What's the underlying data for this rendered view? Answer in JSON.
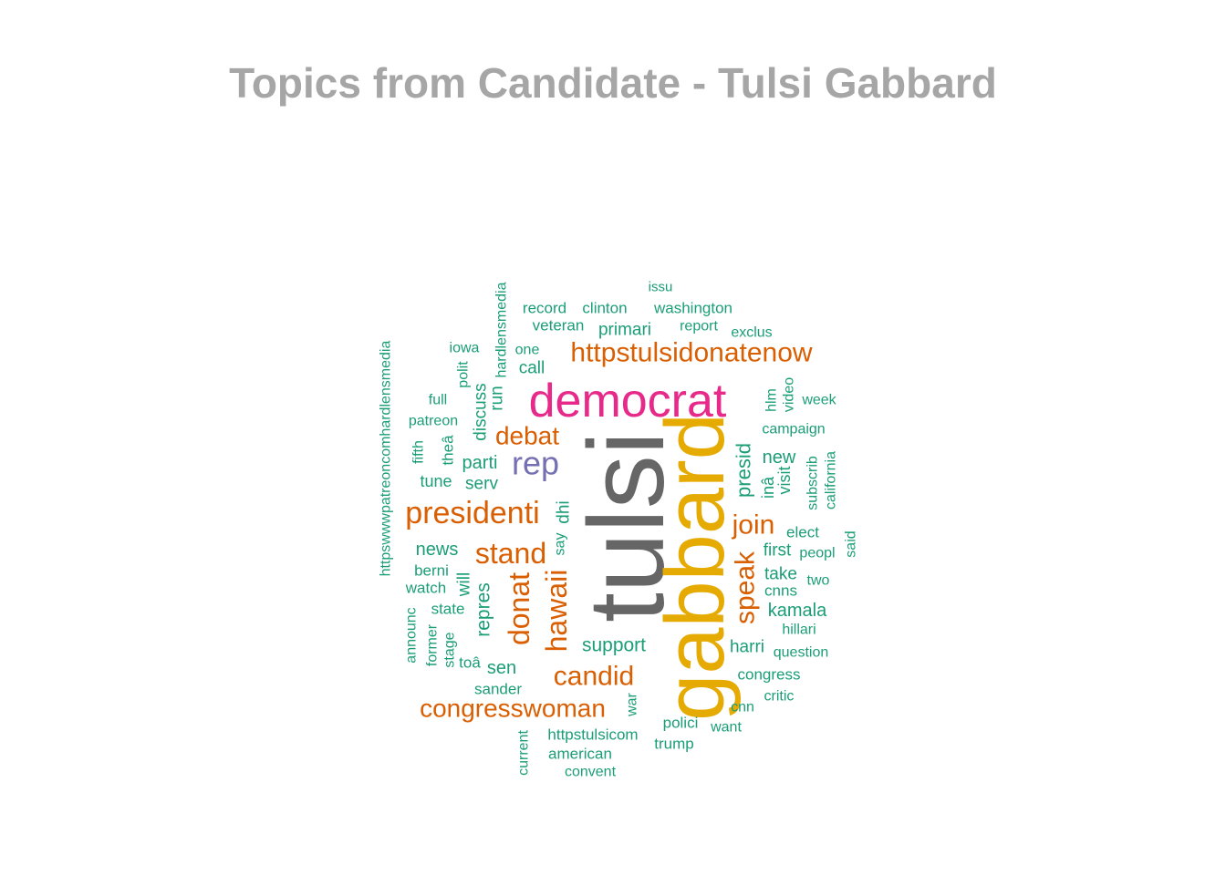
{
  "title": "Topics from Candidate - Tulsi Gabbard",
  "chart_data": {
    "type": "wordcloud",
    "title": "Topics from Candidate - Tulsi Gabbard",
    "colors": {
      "top": "#666666",
      "second": "#e6ab02",
      "third": "#e7298a",
      "fourth": "#7570b3",
      "fifth": "#d95f02",
      "rest": "#1b9e77",
      "title": "#a6a6a6"
    },
    "words": [
      {
        "text": "tulsi",
        "weight": 100,
        "color": "#666666",
        "rotated": true
      },
      {
        "text": "gabbard",
        "weight": 78,
        "color": "#e6ab02",
        "rotated": true
      },
      {
        "text": "democrat",
        "weight": 44,
        "color": "#e7298a",
        "rotated": false
      },
      {
        "text": "rep",
        "weight": 30,
        "color": "#7570b3",
        "rotated": false
      },
      {
        "text": "presidenti",
        "weight": 27,
        "color": "#d95f02",
        "rotated": false
      },
      {
        "text": "httpstulsidonatenow",
        "weight": 25,
        "color": "#d95f02",
        "rotated": false
      },
      {
        "text": "stand",
        "weight": 26,
        "color": "#d95f02",
        "rotated": false
      },
      {
        "text": "hawaii",
        "weight": 27,
        "color": "#d95f02",
        "rotated": true
      },
      {
        "text": "donat",
        "weight": 26,
        "color": "#d95f02",
        "rotated": true
      },
      {
        "text": "candid",
        "weight": 26,
        "color": "#d95f02",
        "rotated": false
      },
      {
        "text": "congresswoman",
        "weight": 24,
        "color": "#d95f02",
        "rotated": false
      },
      {
        "text": "speak",
        "weight": 26,
        "color": "#d95f02",
        "rotated": true
      },
      {
        "text": "join",
        "weight": 25,
        "color": "#d95f02",
        "rotated": false
      },
      {
        "text": "debat",
        "weight": 24,
        "color": "#d95f02",
        "rotated": false
      },
      {
        "text": "presid",
        "weight": 19,
        "color": "#1b9e77",
        "rotated": true
      },
      {
        "text": "support",
        "weight": 18,
        "color": "#1b9e77",
        "rotated": false
      },
      {
        "text": "repres",
        "weight": 18,
        "color": "#1b9e77",
        "rotated": true
      },
      {
        "text": "news",
        "weight": 17,
        "color": "#1b9e77",
        "rotated": false
      },
      {
        "text": "parti",
        "weight": 17,
        "color": "#1b9e77",
        "rotated": false
      },
      {
        "text": "serv",
        "weight": 16,
        "color": "#1b9e77",
        "rotated": false
      },
      {
        "text": "tune",
        "weight": 15,
        "color": "#1b9e77",
        "rotated": false
      },
      {
        "text": "kamala",
        "weight": 17,
        "color": "#1b9e77",
        "rotated": false
      },
      {
        "text": "harri",
        "weight": 16,
        "color": "#1b9e77",
        "rotated": false
      },
      {
        "text": "sen",
        "weight": 17,
        "color": "#1b9e77",
        "rotated": false
      },
      {
        "text": "call",
        "weight": 16,
        "color": "#1b9e77",
        "rotated": false
      },
      {
        "text": "run",
        "weight": 16,
        "color": "#1b9e77",
        "rotated": true
      },
      {
        "text": "discuss",
        "weight": 16,
        "color": "#1b9e77",
        "rotated": true
      },
      {
        "text": "primari",
        "weight": 16,
        "color": "#1b9e77",
        "rotated": false
      },
      {
        "text": "will",
        "weight": 16,
        "color": "#1b9e77",
        "rotated": true
      },
      {
        "text": "dhi",
        "weight": 16,
        "color": "#1b9e77",
        "rotated": true
      },
      {
        "text": "new",
        "weight": 17,
        "color": "#1b9e77",
        "rotated": false
      },
      {
        "text": "first",
        "weight": 16,
        "color": "#1b9e77",
        "rotated": false
      },
      {
        "text": "take",
        "weight": 16,
        "color": "#1b9e77",
        "rotated": false
      },
      {
        "text": "visit",
        "weight": 15,
        "color": "#1b9e77",
        "rotated": true
      },
      {
        "text": "inâ",
        "weight": 15,
        "color": "#1b9e77",
        "rotated": true
      },
      {
        "text": "record",
        "weight": 15,
        "color": "#1b9e77",
        "rotated": false
      },
      {
        "text": "clinton",
        "weight": 15,
        "color": "#1b9e77",
        "rotated": false
      },
      {
        "text": "washington",
        "weight": 15,
        "color": "#1b9e77",
        "rotated": false
      },
      {
        "text": "veteran",
        "weight": 15,
        "color": "#1b9e77",
        "rotated": false
      },
      {
        "text": "report",
        "weight": 14,
        "color": "#1b9e77",
        "rotated": false
      },
      {
        "text": "exclus",
        "weight": 14,
        "color": "#1b9e77",
        "rotated": false
      },
      {
        "text": "issu",
        "weight": 13,
        "color": "#1b9e77",
        "rotated": false
      },
      {
        "text": "hardlensmedia",
        "weight": 14,
        "color": "#1b9e77",
        "rotated": true
      },
      {
        "text": "httpswwwpatreoncomhardlensmedia",
        "weight": 14,
        "color": "#1b9e77",
        "rotated": true
      },
      {
        "text": "iowa",
        "weight": 14,
        "color": "#1b9e77",
        "rotated": false
      },
      {
        "text": "polit",
        "weight": 14,
        "color": "#1b9e77",
        "rotated": true
      },
      {
        "text": "one",
        "weight": 14,
        "color": "#1b9e77",
        "rotated": false
      },
      {
        "text": "full",
        "weight": 14,
        "color": "#1b9e77",
        "rotated": false
      },
      {
        "text": "patreon",
        "weight": 14,
        "color": "#1b9e77",
        "rotated": false
      },
      {
        "text": "fifth",
        "weight": 14,
        "color": "#1b9e77",
        "rotated": true
      },
      {
        "text": "theâ",
        "weight": 15,
        "color": "#1b9e77",
        "rotated": true
      },
      {
        "text": "hlm",
        "weight": 14,
        "color": "#1b9e77",
        "rotated": true
      },
      {
        "text": "video",
        "weight": 14,
        "color": "#1b9e77",
        "rotated": true
      },
      {
        "text": "week",
        "weight": 14,
        "color": "#1b9e77",
        "rotated": false
      },
      {
        "text": "campaign",
        "weight": 14,
        "color": "#1b9e77",
        "rotated": false
      },
      {
        "text": "subscrib",
        "weight": 14,
        "color": "#1b9e77",
        "rotated": true
      },
      {
        "text": "california",
        "weight": 14,
        "color": "#1b9e77",
        "rotated": true
      },
      {
        "text": "elect",
        "weight": 15,
        "color": "#1b9e77",
        "rotated": false
      },
      {
        "text": "peopl",
        "weight": 14,
        "color": "#1b9e77",
        "rotated": false
      },
      {
        "text": "said",
        "weight": 14,
        "color": "#1b9e77",
        "rotated": true
      },
      {
        "text": "two",
        "weight": 14,
        "color": "#1b9e77",
        "rotated": false
      },
      {
        "text": "cnns",
        "weight": 15,
        "color": "#1b9e77",
        "rotated": false
      },
      {
        "text": "hillari",
        "weight": 14,
        "color": "#1b9e77",
        "rotated": false
      },
      {
        "text": "question",
        "weight": 14,
        "color": "#1b9e77",
        "rotated": false
      },
      {
        "text": "congress",
        "weight": 15,
        "color": "#1b9e77",
        "rotated": false
      },
      {
        "text": "critic",
        "weight": 14,
        "color": "#1b9e77",
        "rotated": false
      },
      {
        "text": "cnn",
        "weight": 14,
        "color": "#1b9e77",
        "rotated": false
      },
      {
        "text": "want",
        "weight": 14,
        "color": "#1b9e77",
        "rotated": false
      },
      {
        "text": "polici",
        "weight": 15,
        "color": "#1b9e77",
        "rotated": false
      },
      {
        "text": "trump",
        "weight": 15,
        "color": "#1b9e77",
        "rotated": false
      },
      {
        "text": "war",
        "weight": 14,
        "color": "#1b9e77",
        "rotated": true
      },
      {
        "text": "httpstulsicom",
        "weight": 15,
        "color": "#1b9e77",
        "rotated": false
      },
      {
        "text": "american",
        "weight": 15,
        "color": "#1b9e77",
        "rotated": false
      },
      {
        "text": "convent",
        "weight": 14,
        "color": "#1b9e77",
        "rotated": false
      },
      {
        "text": "current",
        "weight": 14,
        "color": "#1b9e77",
        "rotated": true
      },
      {
        "text": "sander",
        "weight": 15,
        "color": "#1b9e77",
        "rotated": false
      },
      {
        "text": "toâ",
        "weight": 15,
        "color": "#1b9e77",
        "rotated": false
      },
      {
        "text": "stage",
        "weight": 14,
        "color": "#1b9e77",
        "rotated": true
      },
      {
        "text": "former",
        "weight": 14,
        "color": "#1b9e77",
        "rotated": true
      },
      {
        "text": "announc",
        "weight": 14,
        "color": "#1b9e77",
        "rotated": true
      },
      {
        "text": "state",
        "weight": 15,
        "color": "#1b9e77",
        "rotated": false
      },
      {
        "text": "watch",
        "weight": 15,
        "color": "#1b9e77",
        "rotated": false
      },
      {
        "text": "berni",
        "weight": 15,
        "color": "#1b9e77",
        "rotated": false
      },
      {
        "text": "say",
        "weight": 14,
        "color": "#1b9e77",
        "rotated": true
      }
    ]
  }
}
